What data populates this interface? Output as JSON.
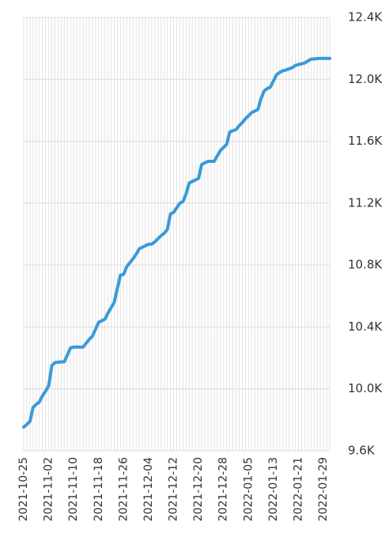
{
  "chart_data": {
    "type": "line",
    "categories": [
      "2021-10-25",
      null,
      null,
      null,
      null,
      null,
      null,
      null,
      "2021-11-02",
      null,
      null,
      null,
      null,
      null,
      null,
      null,
      "2021-11-10",
      null,
      null,
      null,
      null,
      null,
      null,
      null,
      "2021-11-18",
      null,
      null,
      null,
      null,
      null,
      null,
      null,
      "2021-11-26",
      null,
      null,
      null,
      null,
      null,
      null,
      null,
      "2021-12-04",
      null,
      null,
      null,
      null,
      null,
      null,
      null,
      "2021-12-12",
      null,
      null,
      null,
      null,
      null,
      null,
      null,
      "2021-12-20",
      null,
      null,
      null,
      null,
      null,
      null,
      null,
      "2021-12-28",
      null,
      null,
      null,
      null,
      null,
      null,
      null,
      "2022-01-05",
      null,
      null,
      null,
      null,
      null,
      null,
      null,
      "2022-01-13",
      null,
      null,
      null,
      null,
      null,
      null,
      null,
      "2022-01-21",
      null,
      null,
      null,
      null,
      null,
      null,
      null,
      "2022-01-29",
      null,
      null
    ],
    "series": [
      {
        "color": "#3a9ad9",
        "values": [
          9753,
          9770,
          9790,
          9880,
          9900,
          9915,
          9955,
          9985,
          10020,
          10150,
          10170,
          10172,
          10174,
          10175,
          10220,
          10265,
          10270,
          10270,
          10270,
          10270,
          10295,
          10320,
          10340,
          10385,
          10430,
          10440,
          10450,
          10490,
          10525,
          10560,
          10650,
          10735,
          10740,
          10790,
          10815,
          10840,
          10870,
          10905,
          10915,
          10925,
          10935,
          10935,
          10950,
          10970,
          10990,
          11005,
          11030,
          11130,
          11140,
          11170,
          11200,
          11210,
          11260,
          11330,
          11340,
          11350,
          11360,
          11450,
          11460,
          11470,
          11470,
          11470,
          11505,
          11540,
          11560,
          11580,
          11660,
          11668,
          11675,
          11700,
          11720,
          11745,
          11765,
          11785,
          11795,
          11805,
          11875,
          11925,
          11940,
          11950,
          11990,
          12030,
          12045,
          12055,
          12060,
          12068,
          12075,
          12090,
          12095,
          12100,
          12105,
          12118,
          12130,
          12132,
          12134,
          12135,
          12135,
          12135,
          12135
        ]
      }
    ],
    "ylim": [
      9600,
      12400
    ],
    "yticks": [
      {
        "value": 9600,
        "label": "9.6K"
      },
      {
        "value": 10000,
        "label": "10.0K"
      },
      {
        "value": 10400,
        "label": "10.4K"
      },
      {
        "value": 10800,
        "label": "10.8K"
      },
      {
        "value": 11200,
        "label": "11.2K"
      },
      {
        "value": 11600,
        "label": "11.6K"
      },
      {
        "value": 12000,
        "label": "12.0K"
      },
      {
        "value": 12400,
        "label": "12.4K"
      }
    ],
    "grid": true
  }
}
